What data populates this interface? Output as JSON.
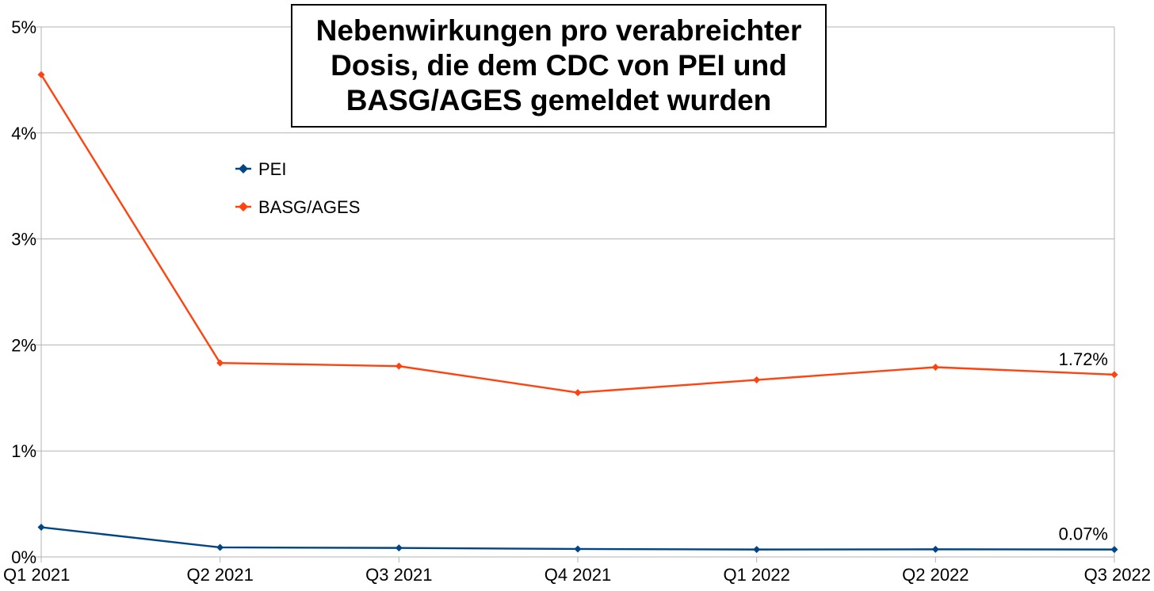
{
  "chart_data": {
    "type": "line",
    "title": "Nebenwirkungen pro verabreichter\nDosis, die dem CDC von PEI und\nBASG/AGES gemeldet wurden",
    "categories": [
      "Q1 2021",
      "Q2 2021",
      "Q3 2021",
      "Q4 2021",
      "Q1 2022",
      "Q2 2022",
      "Q3 2022"
    ],
    "ylim": [
      0,
      5
    ],
    "yticks": [
      0,
      1,
      2,
      3,
      4,
      5
    ],
    "ytick_labels": [
      "0%",
      "1%",
      "2%",
      "3%",
      "4%",
      "5%"
    ],
    "grid": true,
    "legend_position": "upper-left inside plot",
    "series": [
      {
        "name": "PEI",
        "color": "#004586",
        "marker": "diamond",
        "values": [
          0.28,
          0.09,
          0.085,
          0.075,
          0.07,
          0.072,
          0.07
        ],
        "last_label": "0.07%"
      },
      {
        "name": "BASG/AGES",
        "color": "#ff420e",
        "marker": "diamond",
        "values": [
          4.55,
          1.83,
          1.8,
          1.55,
          1.67,
          1.79,
          1.72
        ],
        "last_label": "1.72%"
      }
    ]
  }
}
